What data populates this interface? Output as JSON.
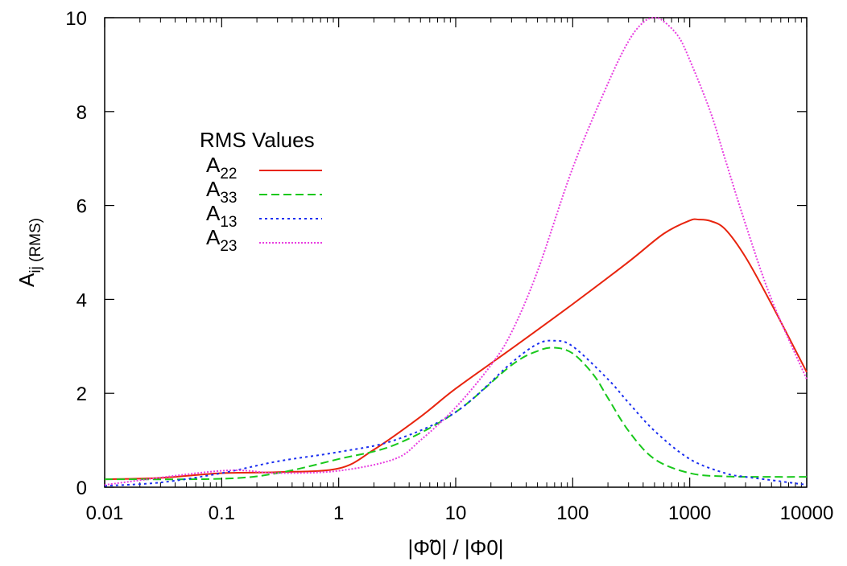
{
  "chart_data": {
    "type": "line",
    "title": "",
    "xscale": "log",
    "xlim": [
      0.01,
      10000
    ],
    "ylim": [
      0,
      10
    ],
    "xticks": [
      "0.01",
      "0.1",
      "1",
      "10",
      "100",
      "1000",
      "10000"
    ],
    "yticks": [
      "0",
      "2",
      "4",
      "6",
      "8",
      "10"
    ],
    "xlabel": {
      "text": "|Φ̃0| / |Φ0|"
    },
    "ylabel": {
      "base": "A",
      "sub": "ij (RMS)"
    },
    "grid": false,
    "legend": {
      "title": "RMS Values",
      "position": "upper-left"
    },
    "series": [
      {
        "name": "A22",
        "base": "A",
        "sub": "22",
        "color": "#e8240e",
        "dash": "solid",
        "x": [
          0.01,
          0.03,
          0.1,
          0.3,
          1,
          2,
          5,
          10,
          30,
          100,
          300,
          600,
          1000,
          1200,
          1500,
          2000,
          3000,
          5000,
          10000
        ],
        "y": [
          0.17,
          0.2,
          0.3,
          0.32,
          0.4,
          0.8,
          1.5,
          2.1,
          2.95,
          3.9,
          4.8,
          5.4,
          5.68,
          5.7,
          5.67,
          5.5,
          4.9,
          3.9,
          2.45
        ]
      },
      {
        "name": "A33",
        "base": "A",
        "sub": "33",
        "color": "#19c81c",
        "dash": "10,5",
        "x": [
          0.01,
          0.1,
          0.3,
          1,
          3,
          10,
          30,
          50,
          70,
          100,
          150,
          200,
          300,
          500,
          1000,
          2000,
          5000,
          10000
        ],
        "y": [
          0.17,
          0.18,
          0.3,
          0.6,
          0.9,
          1.6,
          2.6,
          2.9,
          2.97,
          2.85,
          2.4,
          1.9,
          1.2,
          0.6,
          0.3,
          0.23,
          0.22,
          0.22
        ]
      },
      {
        "name": "A13",
        "base": "A",
        "sub": "13",
        "color": "#1a2ef0",
        "dash": "3,4",
        "x": [
          0.01,
          0.03,
          0.1,
          0.3,
          1,
          3,
          10,
          30,
          50,
          70,
          100,
          200,
          300,
          500,
          1000,
          2000,
          3000,
          5000,
          10000
        ],
        "y": [
          0.03,
          0.1,
          0.3,
          0.55,
          0.75,
          1.0,
          1.6,
          2.65,
          3.05,
          3.12,
          3.0,
          2.3,
          1.8,
          1.2,
          0.6,
          0.3,
          0.22,
          0.15,
          0.05
        ]
      },
      {
        "name": "A23",
        "base": "A",
        "sub": "23",
        "color": "#e83ee0",
        "dash": "2,2",
        "x": [
          0.01,
          0.1,
          0.3,
          1,
          3,
          5,
          10,
          20,
          30,
          50,
          100,
          200,
          300,
          400,
          500,
          600,
          800,
          1000,
          1500,
          2000,
          3000,
          5000,
          10000
        ],
        "y": [
          0.05,
          0.35,
          0.3,
          0.35,
          0.6,
          1.0,
          1.7,
          2.6,
          3.3,
          4.6,
          6.8,
          8.6,
          9.5,
          9.9,
          10.0,
          9.92,
          9.6,
          9.1,
          8.0,
          7.0,
          5.6,
          4.0,
          2.3
        ]
      }
    ]
  }
}
